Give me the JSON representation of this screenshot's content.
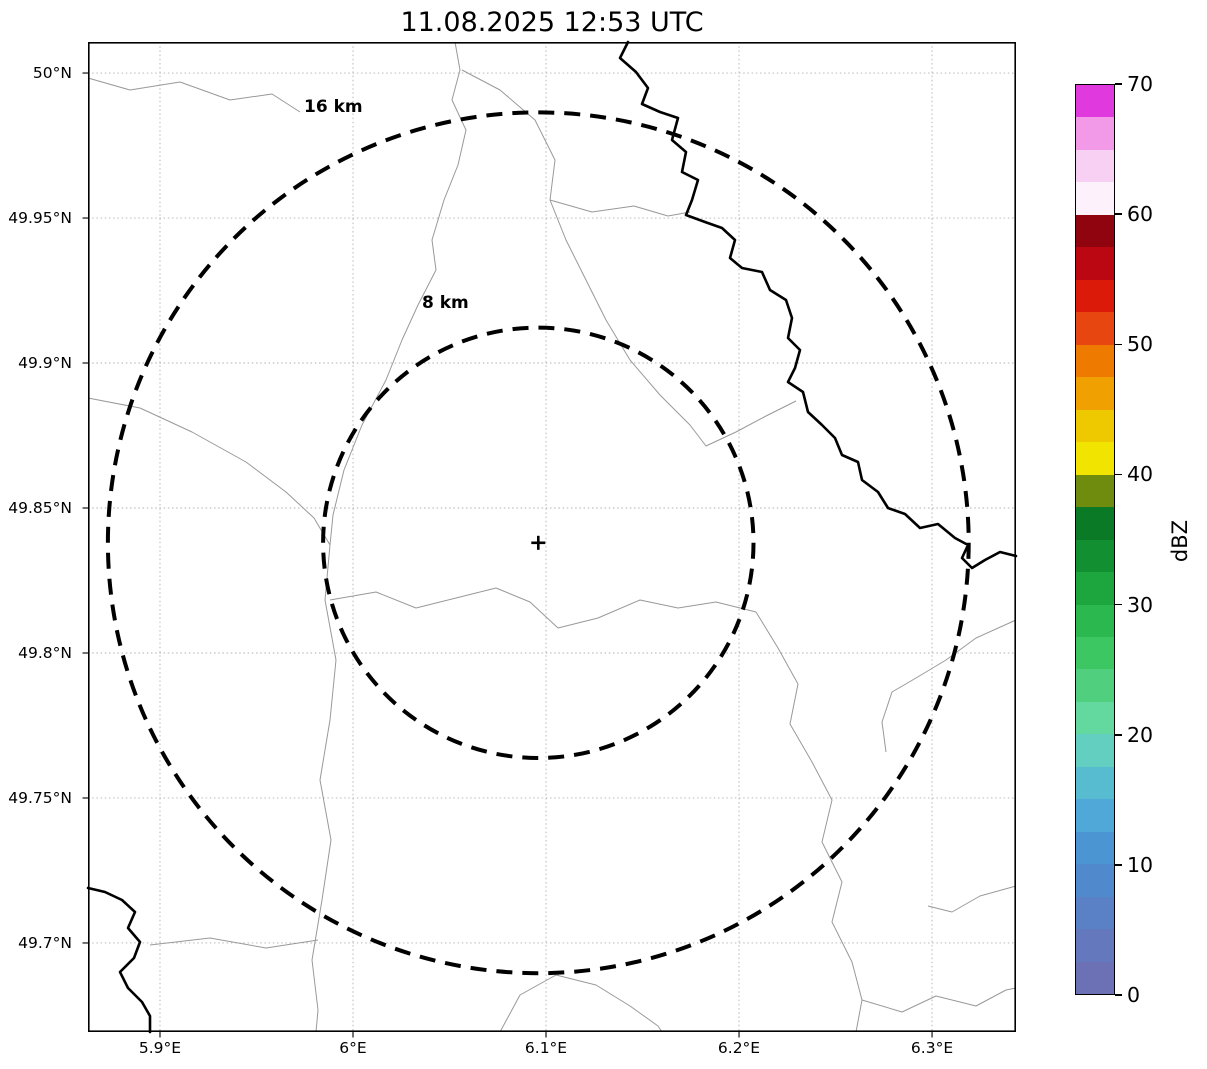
{
  "title": "11.08.2025 12:53 UTC",
  "map": {
    "x_axis": {
      "ticks": [
        {
          "label": "5.9°E",
          "lon": 5.9
        },
        {
          "label": "6°E",
          "lon": 6.0
        },
        {
          "label": "6.1°E",
          "lon": 6.1
        },
        {
          "label": "6.2°E",
          "lon": 6.2
        },
        {
          "label": "6.3°E",
          "lon": 6.3
        }
      ]
    },
    "y_axis": {
      "ticks": [
        {
          "label": "50°N",
          "lat": 50.0
        },
        {
          "label": "49.95°N",
          "lat": 49.95
        },
        {
          "label": "49.9°N",
          "lat": 49.9
        },
        {
          "label": "49.85°N",
          "lat": 49.85
        },
        {
          "label": "49.8°N",
          "lat": 49.8
        },
        {
          "label": "49.75°N",
          "lat": 49.75
        },
        {
          "label": "49.7°N",
          "lat": 49.7
        }
      ]
    },
    "extent": {
      "lon_min": 5.8627,
      "lon_max": 6.3435,
      "lat_min": 49.6693,
      "lat_max": 50.0107
    },
    "radar_site": {
      "lon": 6.096,
      "lat": 49.838,
      "marker": "+"
    },
    "range_rings": [
      {
        "label": "16 km",
        "radius_km": 16
      },
      {
        "label": "8 km",
        "radius_km": 8
      }
    ],
    "boundary_paths": [
      "M0,36 L42,48 92,40 142,58 184,52 212,70",
      "M367,0 L372,28 364,58 378,88 370,123 356,158 344,198 348,228 330,263 314,298 298,338 274,383 256,428 245,473 242,503 237,558 248,618 242,678 232,738 243,798 234,858 224,918 230,968 228,990",
      "M374,28 L412,48 447,78 467,118 462,158 478,198 498,238 518,278 542,318 572,353 602,383 618,404 648,390 678,374 708,359",
      "M462,158 L504,170 546,164 580,174 602,170",
      "M0,356 L52,366 104,390 158,420 198,450 226,476 242,503",
      "M242,558 L288,550 328,566 368,556 408,546 442,560 470,586 510,576 552,558 590,566 628,560 668,570",
      "M668,570 L690,606 710,642 702,682 724,720 744,758 734,800 754,840 744,880 764,920 774,958 768,990",
      "M62,903 L122,896 178,906 230,898",
      "M412,990 L432,953 468,933 508,943 542,964 570,984 574,990",
      "M774,958 L814,970 848,954 888,964 918,948 928,946",
      "M928,844 L892,854 864,870 840,864",
      "M928,578 L888,596 858,618 828,636 804,650 794,680 798,710"
    ],
    "thick_border_paths": [
      "M540,0 L532,16 548,30 560,46 554,62 572,70 590,76 584,98 598,110 594,130 610,138 604,158 598,173 617,180 634,186 647,198 642,216 654,226 674,230 682,248 698,258 704,276 700,296 712,308 707,326 700,340 715,350 720,370 734,383 747,396 754,413 770,420 774,438 790,450 800,466 817,472 832,486 850,482 867,496 880,503 874,516 884,526 897,518 912,510 928,514",
      "M0,846 L17,850 34,858 47,870 40,886 52,900 46,916 32,930 40,946 54,960 62,974 62,990"
    ]
  },
  "colorbar": {
    "label": "dBZ",
    "min": 0,
    "max": 70,
    "tick_values": [
      0,
      10,
      20,
      30,
      40,
      50,
      60,
      70
    ],
    "colors": [
      "#6c71b5",
      "#6378bd",
      "#5a80c5",
      "#5189cd",
      "#4b96d2",
      "#4fa8d8",
      "#58bcd0",
      "#62cfc0",
      "#63d89f",
      "#50cf7e",
      "#3cc763",
      "#2bb84e",
      "#1da53e",
      "#128f31",
      "#0a7a26",
      "#6f8c0e",
      "#f0e400",
      "#eec900",
      "#f0a000",
      "#ee7a00",
      "#e84610",
      "#dc1a0a",
      "#bb0712",
      "#8f040e",
      "#fdf1fb",
      "#f8d0f3",
      "#f29ae8",
      "#e03adf"
    ]
  }
}
